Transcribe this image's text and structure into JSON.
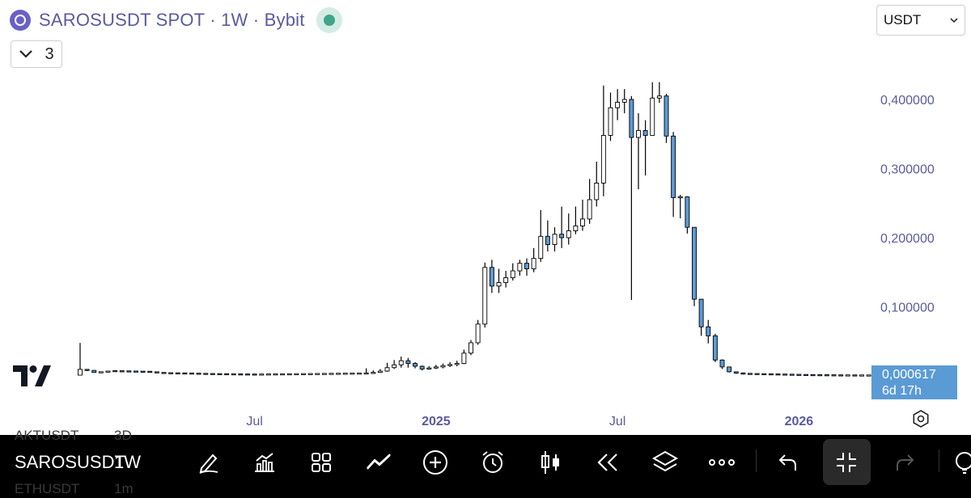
{
  "header": {
    "title": "SAROSUSDT SPOT · 1W · Bybit",
    "collapse_count": "3"
  },
  "currency_select": {
    "value": "USDT"
  },
  "price_badge": {
    "price": "0,000617",
    "countdown": "6d 17h"
  },
  "toolbar": {
    "symbol": "SAROSUSDT",
    "interval": "1W",
    "ghost_symbol_above": "AKTUSDT",
    "ghost_interval_above": "3D",
    "ghost_symbol_below": "ETHUSDT",
    "ghost_interval_below": "1m",
    "icons": [
      "pen-icon",
      "chart-types-icon",
      "grid-icon",
      "trend-lines-icon",
      "add-icon",
      "alert-icon",
      "candlestick-icon",
      "replay-icon",
      "layers-icon",
      "more-icon",
      "undo-icon",
      "exit-fullscreen-icon",
      "redo-icon",
      "indicator-icon"
    ]
  },
  "colors": {
    "up": "#ffffff",
    "down": "#5b9bd5",
    "axis_text": "#5a5a9e",
    "badge": "#5b9bd5"
  },
  "chart_data": {
    "type": "candlestick",
    "title": "SAROSUSDT SPOT · 1W · Bybit",
    "xlabel": "",
    "ylabel": "",
    "ylim": [
      -0.01,
      0.43
    ],
    "y_ticks": [
      {
        "value": 0.4,
        "label": "0,400000"
      },
      {
        "value": 0.3,
        "label": "0,300000"
      },
      {
        "value": 0.2,
        "label": "0,200000"
      },
      {
        "value": 0.1,
        "label": "0,100000"
      }
    ],
    "x_ticks": [
      {
        "bar": 25,
        "label": "Jul"
      },
      {
        "bar": 51,
        "label": "2025"
      },
      {
        "bar": 77,
        "label": "Jul"
      },
      {
        "bar": 103,
        "label": "2026"
      }
    ],
    "last_price": "0,000617",
    "candles": [
      [
        0.0011,
        0.0095,
        0.0477,
        0.001
      ],
      [
        0.0093,
        0.008,
        0.0095,
        0.007
      ],
      [
        0.008,
        0.005,
        0.0085,
        0.0045
      ],
      [
        0.005,
        0.0055,
        0.0065,
        0.004
      ],
      [
        0.0055,
        0.007,
        0.0075,
        0.005
      ],
      [
        0.007,
        0.0068,
        0.008,
        0.006
      ],
      [
        0.0068,
        0.0066,
        0.007,
        0.006
      ],
      [
        0.0066,
        0.0064,
        0.007,
        0.006
      ],
      [
        0.0064,
        0.0062,
        0.0068,
        0.0058
      ],
      [
        0.0062,
        0.006,
        0.0066,
        0.0055
      ],
      [
        0.006,
        0.0058,
        0.0064,
        0.0054
      ],
      [
        0.0058,
        0.0045,
        0.006,
        0.004
      ],
      [
        0.0045,
        0.004,
        0.005,
        0.0036
      ],
      [
        0.004,
        0.0038,
        0.0044,
        0.0034
      ],
      [
        0.0038,
        0.0036,
        0.0042,
        0.0032
      ],
      [
        0.0036,
        0.0035,
        0.004,
        0.003
      ],
      [
        0.0035,
        0.0033,
        0.0038,
        0.0029
      ],
      [
        0.0033,
        0.003,
        0.0036,
        0.0027
      ],
      [
        0.003,
        0.0028,
        0.0034,
        0.0025
      ],
      [
        0.0028,
        0.0026,
        0.0032,
        0.0023
      ],
      [
        0.0026,
        0.0025,
        0.003,
        0.0022
      ],
      [
        0.0025,
        0.0024,
        0.0028,
        0.0021
      ],
      [
        0.0024,
        0.0022,
        0.0027,
        0.002
      ],
      [
        0.0022,
        0.0021,
        0.0025,
        0.0018
      ],
      [
        0.0021,
        0.002,
        0.0024,
        0.0017
      ],
      [
        0.002,
        0.0019,
        0.0023,
        0.0016
      ],
      [
        0.0019,
        0.002,
        0.0022,
        0.0016
      ],
      [
        0.002,
        0.0021,
        0.0023,
        0.0017
      ],
      [
        0.0021,
        0.0022,
        0.0024,
        0.0018
      ],
      [
        0.0022,
        0.0023,
        0.0025,
        0.0019
      ],
      [
        0.0023,
        0.0024,
        0.0026,
        0.002
      ],
      [
        0.0024,
        0.0025,
        0.0027,
        0.0021
      ],
      [
        0.0025,
        0.0026,
        0.0028,
        0.0022
      ],
      [
        0.0026,
        0.0027,
        0.0029,
        0.0023
      ],
      [
        0.0027,
        0.0028,
        0.003,
        0.0024
      ],
      [
        0.0028,
        0.0029,
        0.0031,
        0.0025
      ],
      [
        0.0029,
        0.003,
        0.0032,
        0.0026
      ],
      [
        0.003,
        0.0031,
        0.0033,
        0.0027
      ],
      [
        0.0031,
        0.0032,
        0.0034,
        0.0028
      ],
      [
        0.0032,
        0.0033,
        0.0035,
        0.0029
      ],
      [
        0.0033,
        0.0034,
        0.0036,
        0.003
      ],
      [
        0.0034,
        0.0036,
        0.011,
        0.003
      ],
      [
        0.0036,
        0.005,
        0.008,
        0.0032
      ],
      [
        0.005,
        0.007,
        0.01,
        0.0045
      ],
      [
        0.007,
        0.012,
        0.019,
        0.006
      ],
      [
        0.012,
        0.016,
        0.023,
        0.01
      ],
      [
        0.016,
        0.022,
        0.028,
        0.012
      ],
      [
        0.022,
        0.018,
        0.026,
        0.012
      ],
      [
        0.018,
        0.014,
        0.02,
        0.011
      ],
      [
        0.014,
        0.01,
        0.015,
        0.008
      ],
      [
        0.01,
        0.0115,
        0.014,
        0.009
      ],
      [
        0.0115,
        0.013,
        0.016,
        0.01
      ],
      [
        0.013,
        0.015,
        0.018,
        0.011
      ],
      [
        0.015,
        0.0165,
        0.02,
        0.013
      ],
      [
        0.0165,
        0.018,
        0.022,
        0.014
      ],
      [
        0.018,
        0.033,
        0.038,
        0.017
      ],
      [
        0.033,
        0.048,
        0.052,
        0.03
      ],
      [
        0.048,
        0.075,
        0.081,
        0.045
      ],
      [
        0.075,
        0.157,
        0.164,
        0.07
      ],
      [
        0.157,
        0.13,
        0.168,
        0.12
      ],
      [
        0.13,
        0.135,
        0.155,
        0.12
      ],
      [
        0.135,
        0.142,
        0.152,
        0.128
      ],
      [
        0.142,
        0.152,
        0.163,
        0.138
      ],
      [
        0.152,
        0.163,
        0.168,
        0.145
      ],
      [
        0.163,
        0.155,
        0.17,
        0.145
      ],
      [
        0.155,
        0.17,
        0.185,
        0.15
      ],
      [
        0.17,
        0.202,
        0.24,
        0.165
      ],
      [
        0.202,
        0.19,
        0.225,
        0.18
      ],
      [
        0.19,
        0.205,
        0.215,
        0.18
      ],
      [
        0.205,
        0.2,
        0.245,
        0.185
      ],
      [
        0.2,
        0.21,
        0.235,
        0.19
      ],
      [
        0.21,
        0.217,
        0.245,
        0.205
      ],
      [
        0.217,
        0.227,
        0.255,
        0.21
      ],
      [
        0.227,
        0.255,
        0.285,
        0.22
      ],
      [
        0.255,
        0.279,
        0.31,
        0.245
      ],
      [
        0.279,
        0.348,
        0.42,
        0.26
      ],
      [
        0.348,
        0.388,
        0.41,
        0.34
      ],
      [
        0.388,
        0.396,
        0.415,
        0.37
      ],
      [
        0.396,
        0.4,
        0.415,
        0.38
      ],
      [
        0.4,
        0.345,
        0.405,
        0.11
      ],
      [
        0.345,
        0.355,
        0.38,
        0.27
      ],
      [
        0.355,
        0.348,
        0.37,
        0.29
      ],
      [
        0.348,
        0.402,
        0.425,
        0.348
      ],
      [
        0.402,
        0.405,
        0.425,
        0.395
      ],
      [
        0.405,
        0.347,
        0.408,
        0.337
      ],
      [
        0.347,
        0.258,
        0.353,
        0.23
      ],
      [
        0.258,
        0.259,
        0.262,
        0.228
      ],
      [
        0.259,
        0.215,
        0.26,
        0.206
      ],
      [
        0.215,
        0.111,
        0.215,
        0.101
      ],
      [
        0.111,
        0.071,
        0.111,
        0.058
      ],
      [
        0.071,
        0.058,
        0.081,
        0.047
      ],
      [
        0.058,
        0.023,
        0.061,
        0.02
      ],
      [
        0.023,
        0.013,
        0.024,
        0.01
      ],
      [
        0.013,
        0.006,
        0.013,
        0.005
      ],
      [
        0.006,
        0.004,
        0.006,
        0.003
      ],
      [
        0.004,
        0.003,
        0.005,
        0.002
      ],
      [
        0.003,
        0.0028,
        0.004,
        0.002
      ],
      [
        0.0028,
        0.0026,
        0.0035,
        0.0018
      ],
      [
        0.0026,
        0.0024,
        0.0032,
        0.0016
      ],
      [
        0.0024,
        0.0022,
        0.003,
        0.0014
      ],
      [
        0.0022,
        0.002,
        0.0028,
        0.0012
      ],
      [
        0.002,
        0.0018,
        0.0026,
        0.001
      ],
      [
        0.0018,
        0.0016,
        0.0024,
        0.001
      ],
      [
        0.0016,
        0.0014,
        0.0022,
        0.0009
      ],
      [
        0.0014,
        0.0012,
        0.002,
        0.0008
      ],
      [
        0.0012,
        0.0011,
        0.0018,
        0.0008
      ],
      [
        0.0011,
        0.001,
        0.0016,
        0.0007
      ],
      [
        0.001,
        0.0009,
        0.0014,
        0.0007
      ],
      [
        0.0009,
        0.0008,
        0.0013,
        0.0006
      ],
      [
        0.0008,
        0.0007,
        0.0012,
        0.0006
      ],
      [
        0.0007,
        0.0007,
        0.0011,
        0.0005
      ],
      [
        0.0007,
        0.0006,
        0.001,
        0.0005
      ],
      [
        0.0006,
        0.0006,
        0.0009,
        0.0005
      ],
      [
        0.0006,
        0.0006,
        0.0008,
        0.0005
      ]
    ]
  }
}
